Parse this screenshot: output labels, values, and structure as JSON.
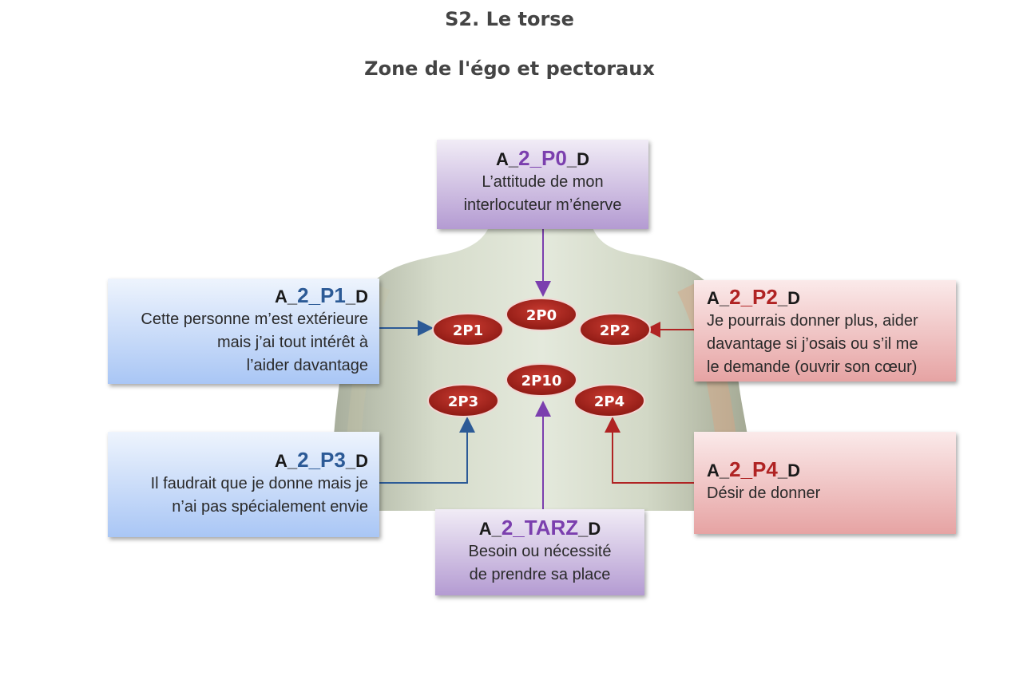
{
  "heading": {
    "title": "S2. Le torse",
    "subtitle": "Zone de l'égo et pectoraux"
  },
  "points": [
    {
      "label": "2P0"
    },
    {
      "label": "2P1"
    },
    {
      "label": "2P2"
    },
    {
      "label": "2P10"
    },
    {
      "label": "2P3"
    },
    {
      "label": "2P4"
    }
  ],
  "boxes": {
    "p0": {
      "prefix": "A_",
      "code": "2_P0",
      "suffix": "_D",
      "lines": [
        "L’attitude de mon",
        "interlocuteur m’énerve"
      ]
    },
    "p1": {
      "prefix": "A_",
      "code": "2_P1",
      "suffix": "_D",
      "lines": [
        "Cette personne m’est extérieure",
        "mais j’ai tout intérêt à",
        "l’aider davantage"
      ]
    },
    "p2": {
      "prefix": "A_",
      "code": "2_P2",
      "suffix": "_D",
      "lines": [
        "Je pourrais donner plus, aider",
        "davantage si j’osais ou s’il me",
        "le demande (ouvrir son cœur)"
      ]
    },
    "p3": {
      "prefix": "A_",
      "code": "2_P3",
      "suffix": "_D",
      "lines": [
        "Il faudrait que je donne mais je",
        "n’ai pas spécialement envie"
      ]
    },
    "p4": {
      "prefix": "A_",
      "code": "2_P4",
      "suffix": "_D",
      "lines": [
        "Désir de donner"
      ]
    },
    "tarz": {
      "prefix": "A_",
      "code": "2_TARZ",
      "suffix": "_D",
      "lines": [
        "Besoin ou nécessité",
        "de prendre sa place"
      ]
    }
  },
  "colors": {
    "purple_accent": "#7b3fae",
    "blue_accent": "#2c5a96",
    "red_accent": "#b02323",
    "point_fill": "#b7261e"
  }
}
